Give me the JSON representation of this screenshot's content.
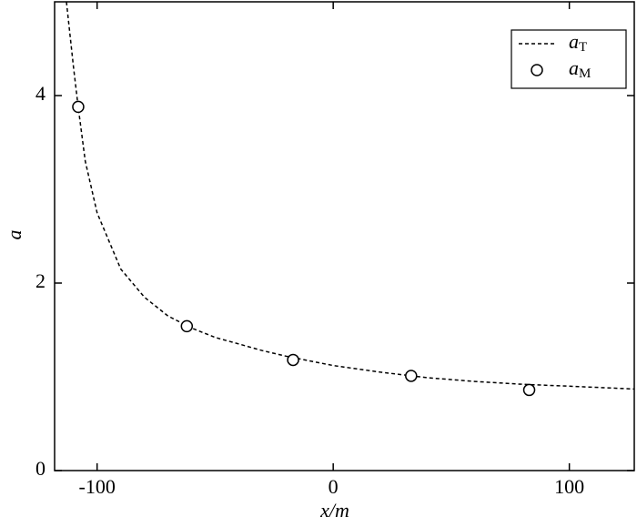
{
  "chart_data": {
    "type": "line",
    "x_label": "x/m",
    "y_label": "a",
    "xlim": [
      -118,
      127.5
    ],
    "ylim": [
      0,
      5
    ],
    "xticks": [
      -100,
      0,
      100
    ],
    "yticks": [
      0,
      2,
      4
    ],
    "legend": "upper right",
    "series": [
      {
        "name": "aT",
        "color": "#000000",
        "style": "dashed",
        "x": [
          -113,
          -110,
          -108,
          -105,
          -100,
          -90,
          -80,
          -70,
          -60,
          -50,
          -40,
          -30,
          -20,
          -10,
          0,
          20,
          40,
          60,
          80,
          100,
          127.5
        ],
        "values": [
          5.0,
          4.3,
          3.88,
          3.3,
          2.75,
          2.15,
          1.85,
          1.65,
          1.52,
          1.42,
          1.35,
          1.28,
          1.22,
          1.17,
          1.12,
          1.05,
          0.99,
          0.95,
          0.92,
          0.9,
          0.87
        ]
      },
      {
        "name": "aM",
        "color": "#000000",
        "style": "markers",
        "x": [
          -108,
          -62,
          -17,
          33,
          83
        ],
        "values": [
          3.88,
          1.54,
          1.18,
          1.01,
          0.86
        ]
      }
    ]
  }
}
